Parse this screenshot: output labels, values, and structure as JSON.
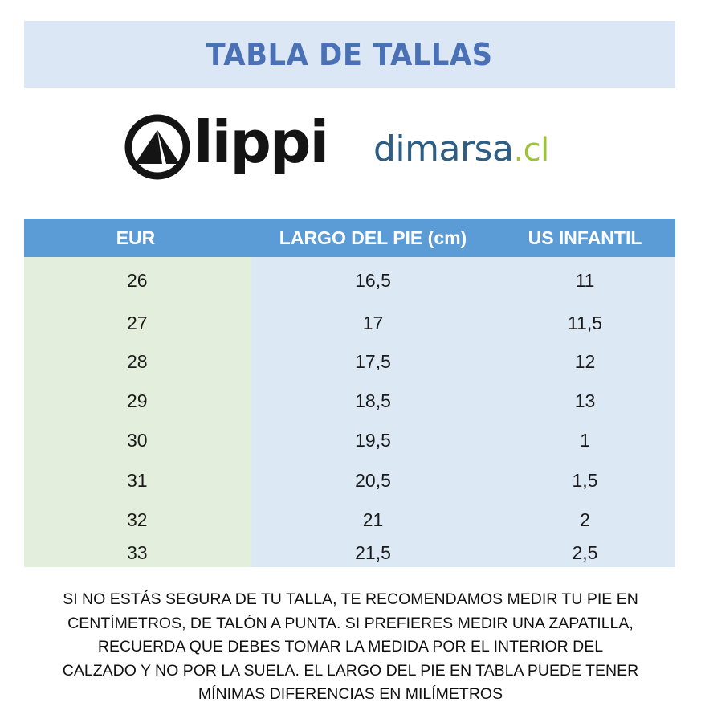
{
  "header": {
    "title": "TABLA DE TALLAS"
  },
  "logos": {
    "lippi": {
      "text": "lippi",
      "icon": "mountain-circle-icon"
    },
    "dimarsa": {
      "name": "dimarsa",
      "ext": ".cl"
    }
  },
  "colors": {
    "title_band": "#dce7f5",
    "title_text": "#4a71b6",
    "table_header": "#5b9bd6",
    "eur_column": "#e3efdc",
    "data_columns": "#dce9f5",
    "dimarsa_blue": "#2d5f86",
    "dimarsa_green": "#9dc13a"
  },
  "table": {
    "headers": [
      "EUR",
      "LARGO DEL PIE (cm)",
      "US INFANTIL"
    ],
    "rows": [
      [
        "26",
        "16,5",
        "11"
      ],
      [
        "27",
        "17",
        "11,5"
      ],
      [
        "28",
        "17,5",
        "12"
      ],
      [
        "29",
        "18,5",
        "13"
      ],
      [
        "30",
        "19,5",
        "1"
      ],
      [
        "31",
        "20,5",
        "1,5"
      ],
      [
        "32",
        "21",
        "2"
      ],
      [
        "33",
        "21,5",
        "2,5"
      ]
    ]
  },
  "note": {
    "lines": [
      "SI NO ESTÁS SEGURA DE TU TALLA, TE RECOMENDAMOS MEDIR TU PIE EN",
      "CENTÍMETROS, DE TALÓN A PUNTA. SI PREFIERES MEDIR UNA ZAPATILLA,",
      "RECUERDA QUE DEBES TOMAR LA MEDIDA POR EL INTERIOR DEL",
      "CALZADO Y NO POR LA SUELA. EL LARGO DEL PIE EN TABLA PUEDE TENER",
      "MÍNIMAS DIFERENCIAS EN MILÍMETROS"
    ]
  }
}
